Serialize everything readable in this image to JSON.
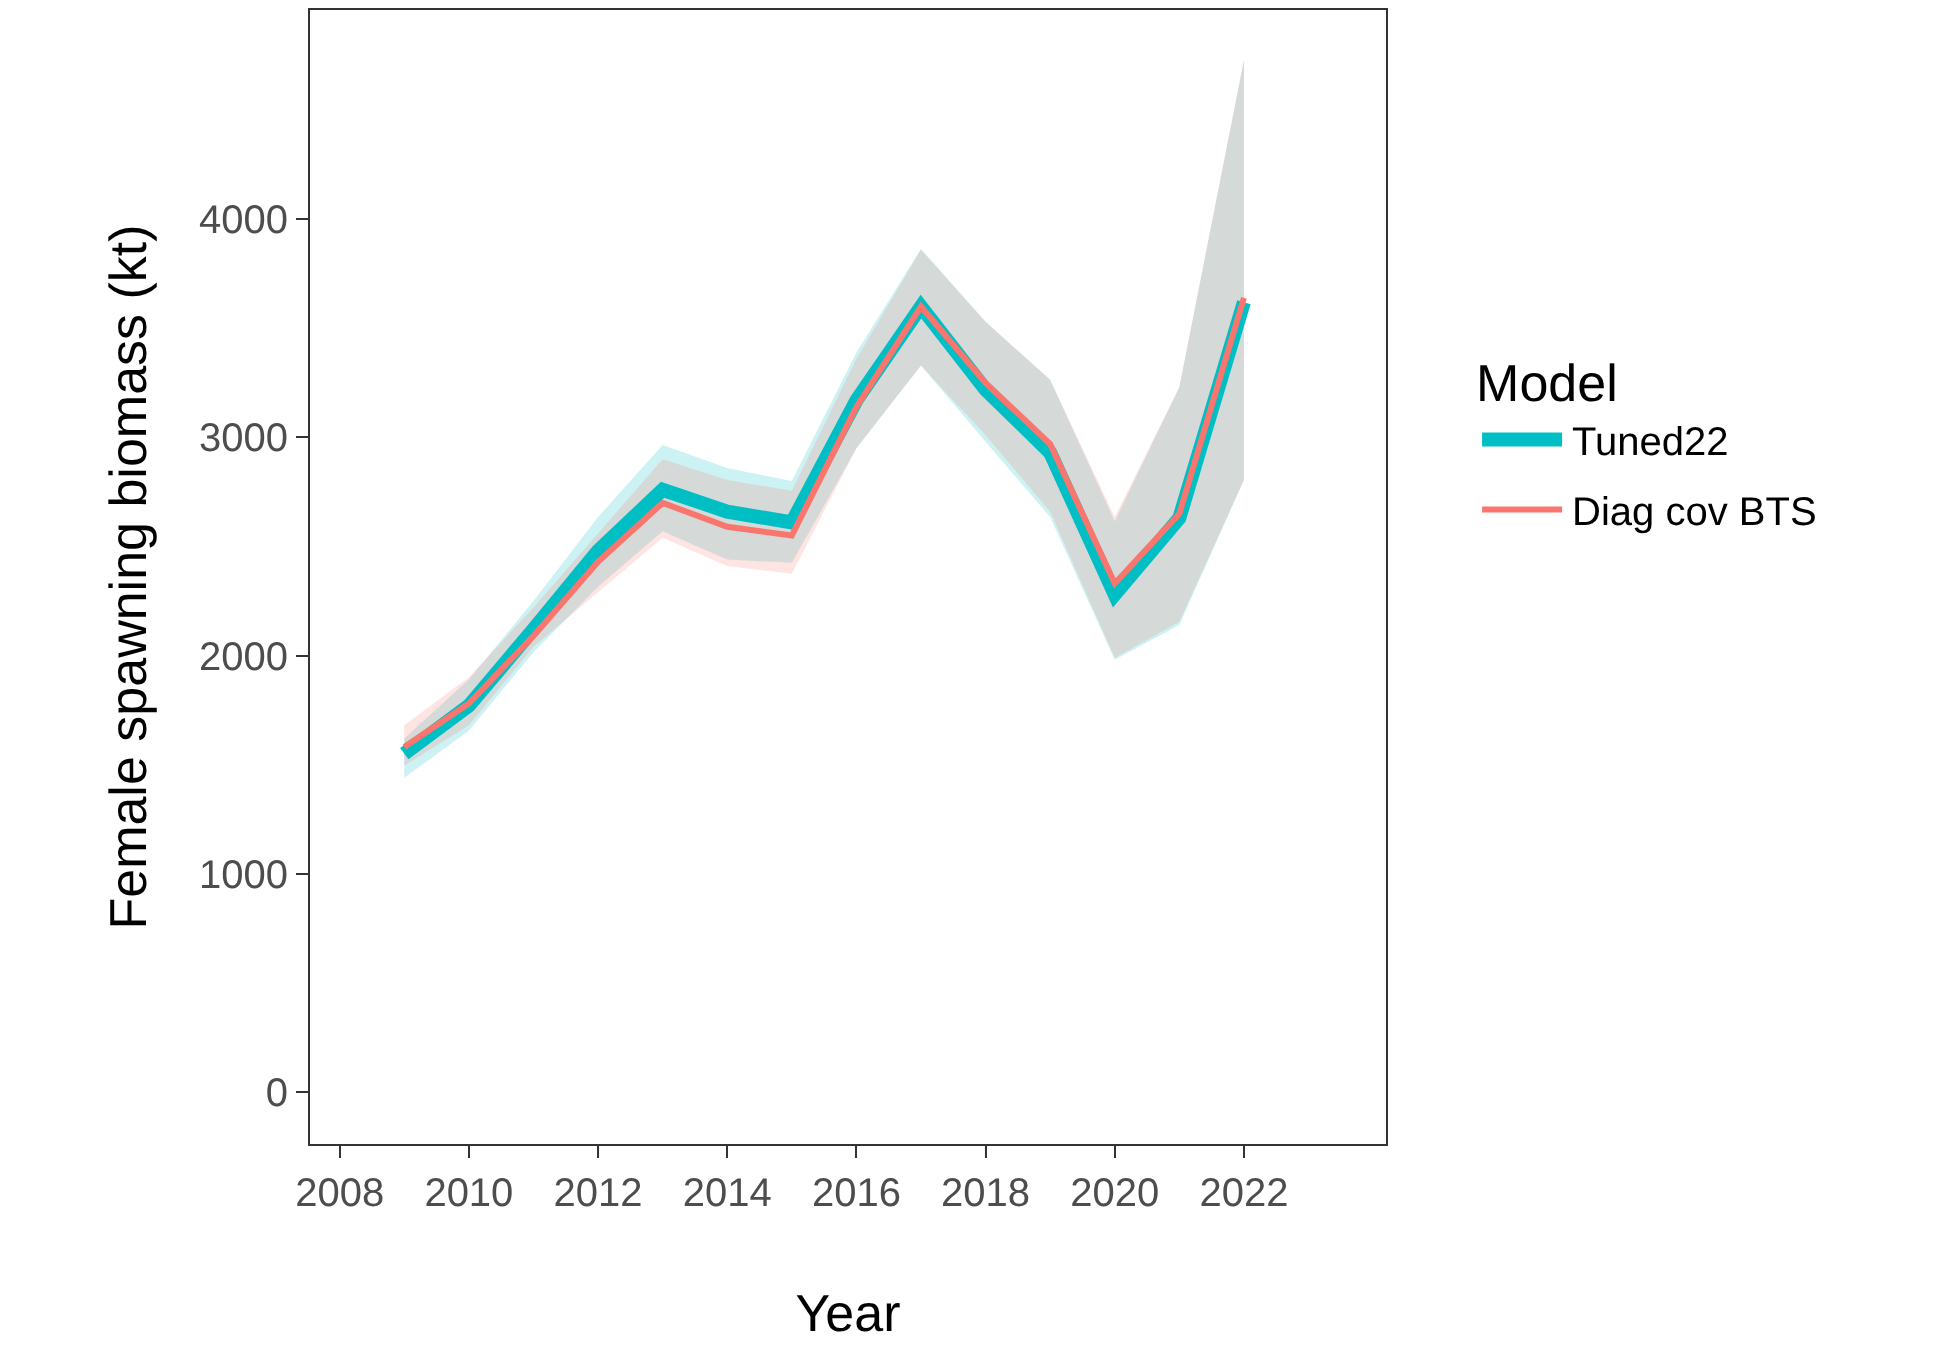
{
  "chart_data": {
    "type": "line",
    "xlabel": "Year",
    "ylabel": "Female spawning biomass (kt)",
    "legend_title": "Model",
    "x": [
      2009,
      2010,
      2011,
      2012,
      2013,
      2014,
      2015,
      2016,
      2017,
      2018,
      2019,
      2020,
      2021,
      2022
    ],
    "series": [
      {
        "name": "Tuned22",
        "color": "#00bfc4",
        "values": [
          1550,
          1770,
          2120,
          2480,
          2760,
          2660,
          2610,
          3170,
          3600,
          3220,
          2930,
          2280,
          2630,
          3620
        ],
        "lower": [
          1440,
          1655,
          2015,
          2315,
          2570,
          2440,
          2425,
          2950,
          3330,
          2980,
          2635,
          1980,
          2140,
          2805
        ],
        "upper": [
          1620,
          1890,
          2250,
          2635,
          2965,
          2860,
          2800,
          3390,
          3865,
          3530,
          3265,
          2615,
          3230,
          4730
        ]
      },
      {
        "name": "Diag cov BTS",
        "color": "#f8766d",
        "values": [
          1580,
          1780,
          2090,
          2430,
          2700,
          2590,
          2550,
          3140,
          3600,
          3250,
          2970,
          2330,
          2650,
          3640
        ],
        "lower": [
          1495,
          1680,
          2040,
          2290,
          2540,
          2410,
          2375,
          2950,
          3330,
          3010,
          2660,
          1990,
          2155,
          2805
        ],
        "upper": [
          1680,
          1900,
          2220,
          2560,
          2900,
          2805,
          2755,
          3360,
          3860,
          3530,
          3265,
          2635,
          3230,
          4730
        ]
      }
    ],
    "xlim": [
      2007.54,
      2024.2
    ],
    "xticks": [
      2008,
      2010,
      2012,
      2014,
      2016,
      2018,
      2020,
      2022
    ],
    "ylim": [
      -240,
      4960
    ],
    "yticks": [
      0,
      1000,
      2000,
      3000,
      4000
    ],
    "grid": false,
    "legend": "right",
    "marker": "none",
    "line_style": "solid"
  }
}
